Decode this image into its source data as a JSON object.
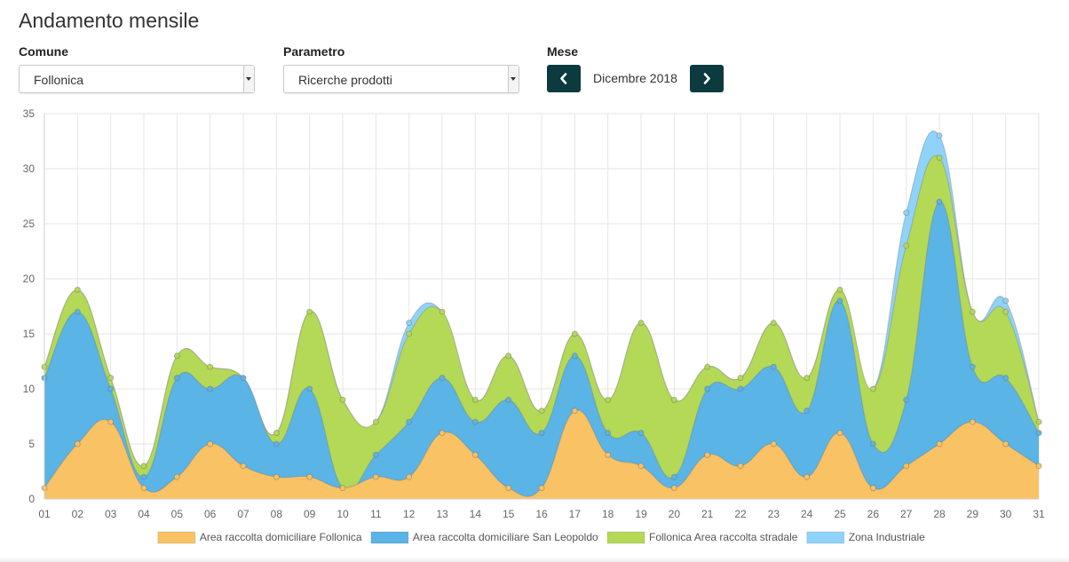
{
  "header": {
    "title": "Andamento mensile"
  },
  "controls": {
    "comune": {
      "label": "Comune",
      "value": "Follonica"
    },
    "parametro": {
      "label": "Parametro",
      "value": "Ricerche prodotti"
    },
    "mese": {
      "label": "Mese",
      "value": "Dicembre 2018"
    }
  },
  "icons": {
    "prev": "chevron-left-icon",
    "next": "chevron-right-icon",
    "dropdown": "caret-down-icon"
  },
  "colors": {
    "nav_button": "#0b3a3f"
  },
  "chart_data": {
    "type": "area",
    "stacked": true,
    "title": "",
    "xlabel": "",
    "ylabel": "",
    "ylim": [
      0,
      35
    ],
    "yticks": [
      0,
      5,
      10,
      15,
      20,
      25,
      30,
      35
    ],
    "grid": true,
    "legend_position": "bottom",
    "x": [
      "01",
      "02",
      "03",
      "04",
      "05",
      "06",
      "07",
      "08",
      "09",
      "10",
      "11",
      "12",
      "13",
      "14",
      "15",
      "16",
      "17",
      "18",
      "19",
      "20",
      "21",
      "22",
      "23",
      "24",
      "25",
      "26",
      "27",
      "28",
      "29",
      "30",
      "31"
    ],
    "series": [
      {
        "name": "Area raccolta domiciliare Follonica",
        "color": "#f9c264",
        "values": [
          1,
          5,
          7,
          1,
          2,
          5,
          3,
          2,
          2,
          1,
          2,
          2,
          6,
          4,
          1,
          1,
          8,
          4,
          3,
          1,
          4,
          3,
          5,
          2,
          6,
          1,
          3,
          5,
          7,
          5,
          3
        ]
      },
      {
        "name": "Area raccolta domiciliare San Leopoldo",
        "color": "#5ab4e5",
        "values": [
          10,
          12,
          3,
          1,
          9,
          5,
          8,
          3,
          8,
          0,
          2,
          5,
          5,
          3,
          8,
          5,
          5,
          2,
          3,
          1,
          6,
          7,
          7,
          6,
          12,
          4,
          6,
          22,
          5,
          6,
          3
        ]
      },
      {
        "name": "Follonica Area raccolta stradale",
        "color": "#b3d957",
        "values": [
          1,
          2,
          1,
          1,
          2,
          2,
          0,
          1,
          7,
          8,
          3,
          8,
          6,
          2,
          4,
          2,
          2,
          3,
          10,
          7,
          2,
          1,
          4,
          3,
          1,
          5,
          14,
          4,
          5,
          6,
          1
        ]
      },
      {
        "name": "Zona Industriale",
        "color": "#8fd3fb",
        "values": [
          0,
          0,
          0,
          0,
          0,
          0,
          0,
          0,
          0,
          0,
          0,
          1,
          0,
          0,
          0,
          0,
          0,
          0,
          0,
          0,
          0,
          0,
          0,
          0,
          0,
          0,
          3,
          2,
          0,
          1,
          0
        ]
      }
    ]
  }
}
